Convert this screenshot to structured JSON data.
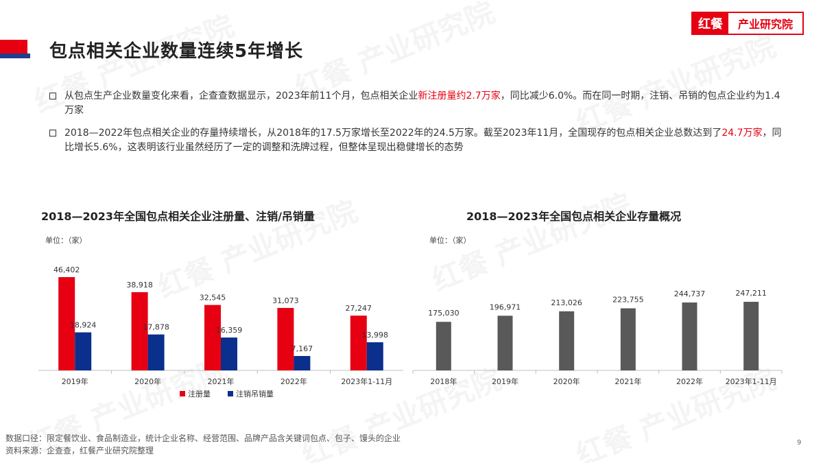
{
  "brand": {
    "mark": "红餐",
    "name": "产业研究院"
  },
  "title": "包点相关企业数量连续5年增长",
  "bullets": [
    {
      "before": "从包点生产企业数量变化来看，企查查数据显示，2023年前11个月，包点相关企业",
      "highlight": "新注册量约2.7万家",
      "after": "，同比减少6.0%。而在同一时期，注销、吊销的包点企业约为1.4万家"
    },
    {
      "before": "2018—2022年包点相关企业的存量持续增长，从2018年的17.5万家增长至2022年的24.5万家。截至2023年11月，全国现存的包点相关企业总数达到了",
      "highlight": "24.7万家",
      "after": "，同比增长5.6%，这表明该行业虽然经历了一定的调整和洗牌过程，但整体呈现出稳健增长的态势"
    }
  ],
  "chart_data": [
    {
      "type": "bar",
      "title": "2018—2023年全国包点相关企业注册量、注销/吊销量",
      "unit": "单位：（家）",
      "categories": [
        "2019年",
        "2020年",
        "2021年",
        "2022年",
        "2023年1-11月"
      ],
      "series": [
        {
          "name": "注册量",
          "color": "#e60012",
          "values": [
            46402,
            38918,
            32545,
            31073,
            27247
          ],
          "labels": [
            "46,402",
            "38,918",
            "32,545",
            "31,073",
            "27,247"
          ]
        },
        {
          "name": "注销吊销量",
          "color": "#0b2f8c",
          "values": [
            18924,
            17878,
            16359,
            7167,
            13998
          ],
          "labels": [
            "18,924",
            "17,878",
            "16,359",
            "7,167",
            "13,998"
          ]
        }
      ],
      "ylim": [
        0,
        46402
      ],
      "legend": "bottom",
      "grid": false
    },
    {
      "type": "bar",
      "title": "2018—2023年全国包点相关企业存量概况",
      "unit": "单位：（家）",
      "categories": [
        "2018年",
        "2019年",
        "2020年",
        "2021年",
        "2022年",
        "2023年1-11月"
      ],
      "series": [
        {
          "color": "#595959",
          "values": [
            175030,
            196971,
            213026,
            223755,
            244737,
            247211
          ],
          "labels": [
            "175,030",
            "196,971",
            "213,026",
            "223,755",
            "244,737",
            "247,211"
          ]
        }
      ],
      "ylim": [
        0,
        247211
      ],
      "grid": false
    }
  ],
  "footnotes": [
    "数据口径：限定餐饮业、食品制造业，统计企业名称、经营范围、品牌产品含关键词包点、包子、馒头的企业",
    "资料来源：企查查，红餐产业研究院整理"
  ],
  "page_number": "9"
}
